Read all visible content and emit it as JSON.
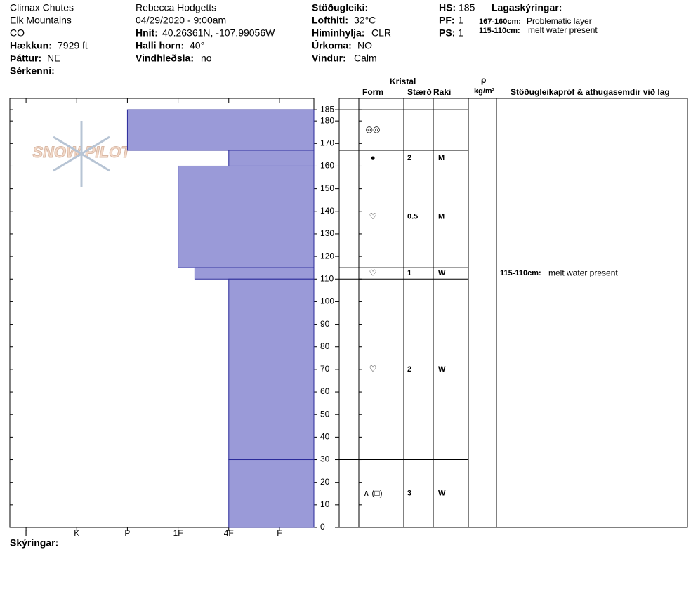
{
  "header": {
    "location": [
      "Climax Chutes",
      "Elk Mountains",
      "CO"
    ],
    "elevation": {
      "label": "Hækkun:",
      "value": "7929 ft"
    },
    "aspect": {
      "label": "Þáttur:",
      "value": "NE"
    },
    "features": {
      "label": "Sérkenni:"
    },
    "observer": "Rebecca Hodgetts",
    "datetime": "04/29/2020 - 9:00am",
    "coordinates": {
      "label": "Hnit:",
      "value": "40.26361N, -107.99056W"
    },
    "slope": {
      "label": "Halli horn:",
      "value": "40°"
    },
    "wind_loading": {
      "label": "Vindhleðsla:",
      "value": "no"
    },
    "stability": {
      "label": "Stöðugleiki:"
    },
    "air_temp": {
      "label": "Lofthiti:",
      "value": "32°C"
    },
    "sky": {
      "label": "Himinhylja:",
      "value": "CLR"
    },
    "precip": {
      "label": "Úrkoma:",
      "value": "NO"
    },
    "wind": {
      "label": "Vindur:",
      "value": "Calm"
    },
    "hs": {
      "label": "HS:",
      "value": "185"
    },
    "pf": {
      "label": "PF:",
      "value": "1"
    },
    "ps": {
      "label": "PS:",
      "value": "1"
    },
    "layer_notes_title": "Lagaskýringar:",
    "layer_notes": [
      {
        "label": "167-160cm:",
        "text": "Problematic layer"
      },
      {
        "label": "115-110cm:",
        "text": "melt water present"
      }
    ]
  },
  "watermark": "SNOW PILOT",
  "footer": "Skýringar:",
  "chart_data": {
    "type": "hardness-profile",
    "color": "#9a9ad8",
    "xlim": [
      -0.32,
      5.68
    ],
    "xticks": [
      {
        "value": 0,
        "label": "I"
      },
      {
        "value": 1,
        "label": "K"
      },
      {
        "value": 2,
        "label": "P"
      },
      {
        "value": 3,
        "label": "1F"
      },
      {
        "value": 4,
        "label": "4F"
      },
      {
        "value": 5,
        "label": "F"
      }
    ],
    "ylim": [
      0,
      190
    ],
    "yticks": [
      0,
      10,
      20,
      30,
      40,
      50,
      60,
      70,
      80,
      90,
      100,
      110,
      120,
      130,
      140,
      150,
      160,
      170,
      180,
      185
    ],
    "table_headers": {
      "crystal": "Kristal",
      "form": "Form",
      "size": "Stærð",
      "moisture": "Raki",
      "density": "ρ",
      "density_unit": "kg/m³",
      "comments": "Stöðugleikapróf & athugasemdir við lag"
    },
    "layers": [
      {
        "top": 185,
        "bottom": 167,
        "hardness": 2,
        "form": "◎◎"
      },
      {
        "top": 167,
        "bottom": 160,
        "hardness": 4,
        "form": "●",
        "size": 2,
        "moisture": "M"
      },
      {
        "top": 160,
        "bottom": 115,
        "hardness": 3,
        "form": "♡",
        "size": 0.5,
        "moisture": "M"
      },
      {
        "top": 115,
        "bottom": 110,
        "hardness": 3.33,
        "form": "♡",
        "size": 1,
        "moisture": "W",
        "comment_label": "115-110cm:",
        "comment": "melt water present"
      },
      {
        "top": 110,
        "bottom": 30,
        "hardness": 4,
        "form": "♡",
        "size": 2,
        "moisture": "W"
      },
      {
        "top": 30,
        "bottom": 0,
        "hardness": 4,
        "form": "∧ (□)",
        "size": 3,
        "moisture": "W"
      }
    ]
  }
}
